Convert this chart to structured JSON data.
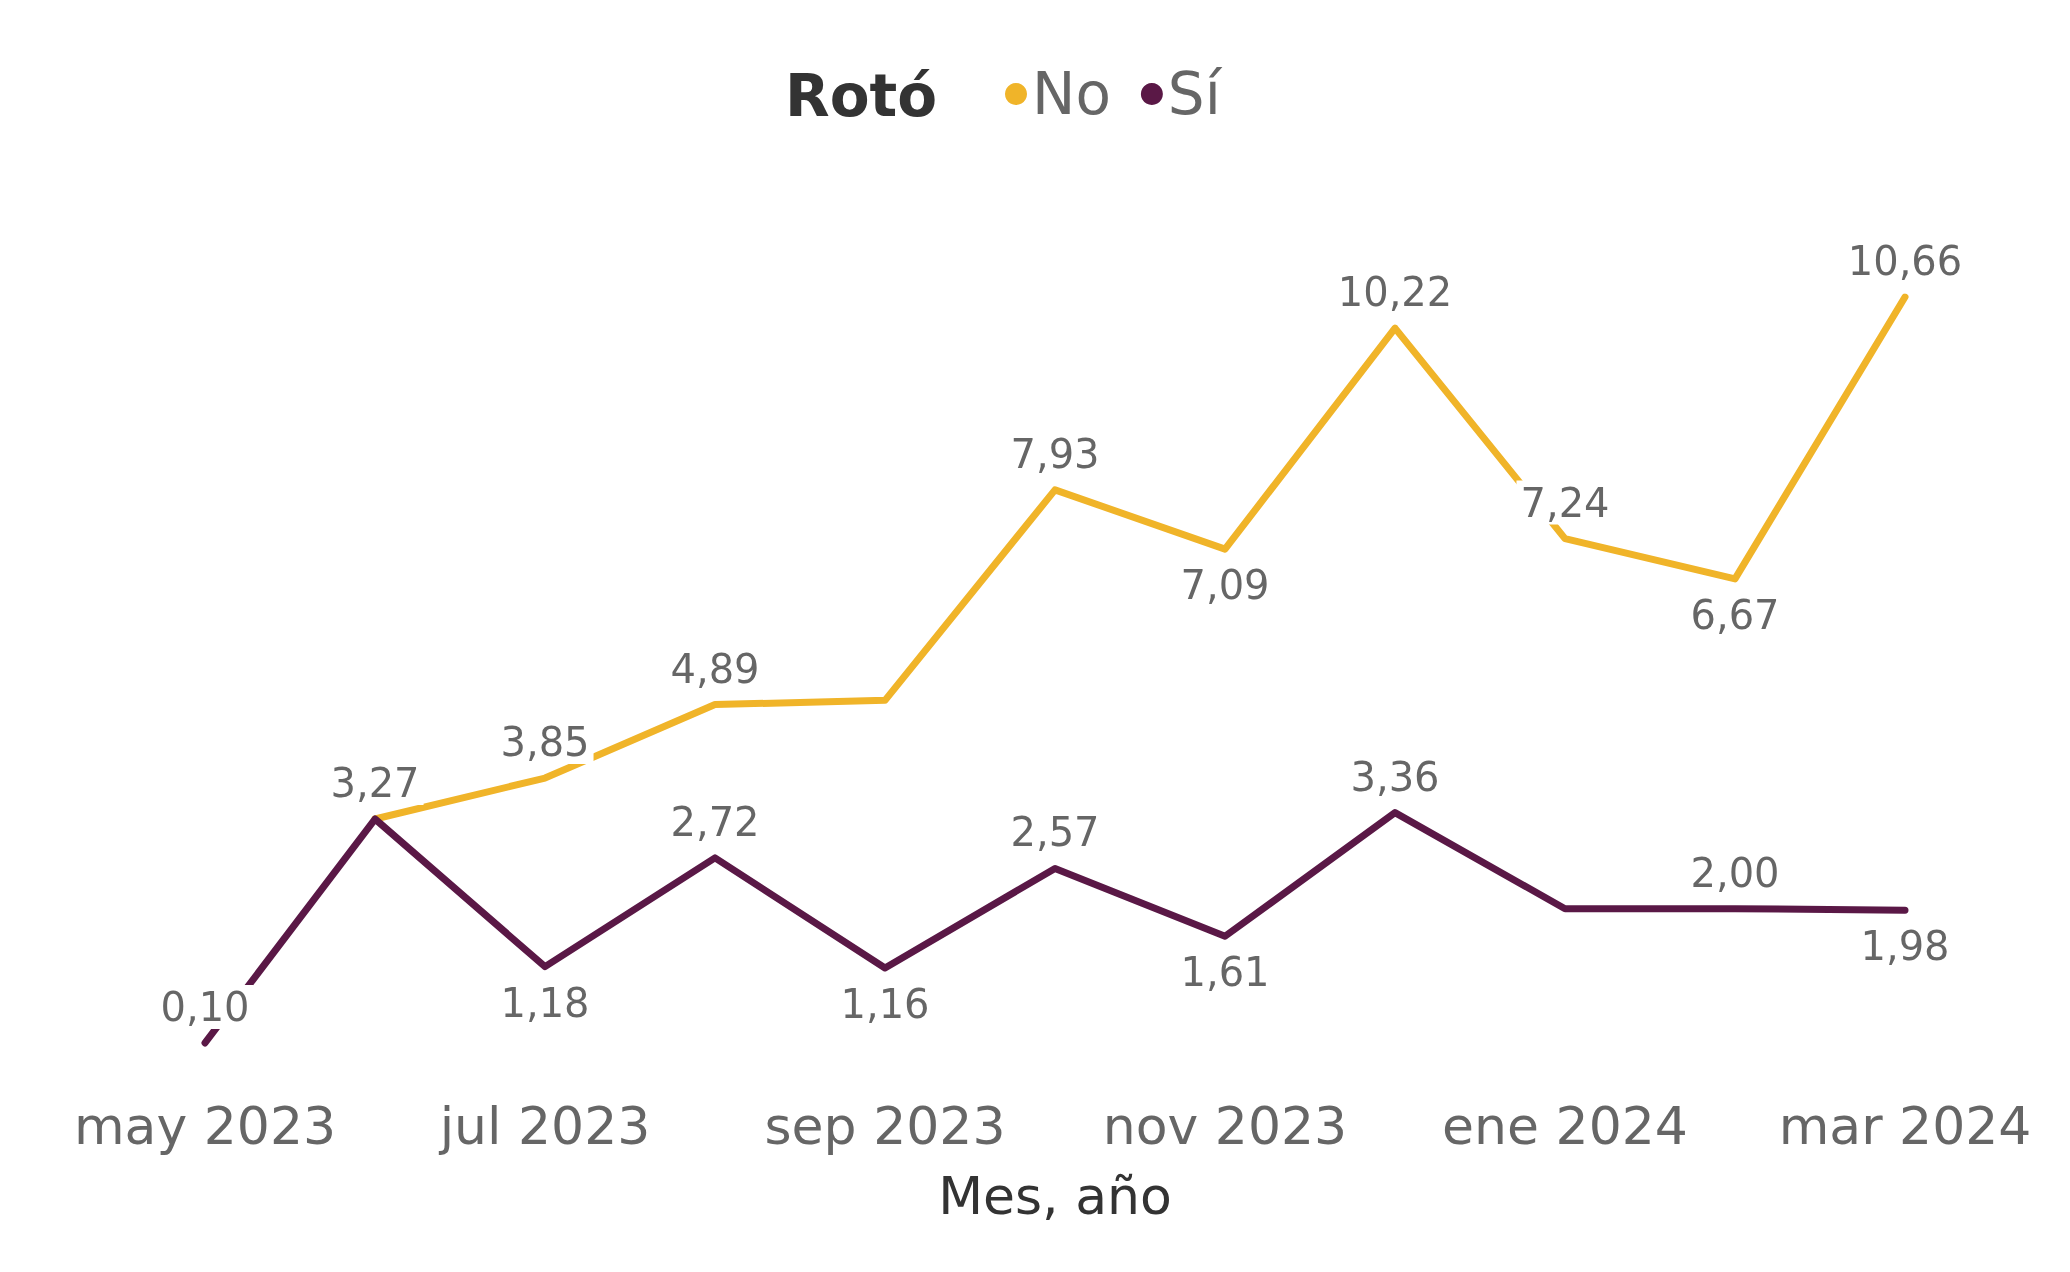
{
  "chart_data": {
    "type": "line",
    "xlabel": "Mes, año",
    "legend_title": "Rotó",
    "legend": "top",
    "marker": "none",
    "grid": false,
    "categories": [
      "may 2023",
      null,
      "jul 2023",
      null,
      "sep 2023",
      null,
      "nov 2023",
      null,
      "ene 2024",
      null,
      "mar 2024"
    ],
    "series": [
      {
        "name": "No",
        "color": "#f0b429",
        "values": [
          null,
          3.27,
          3.85,
          4.89,
          4.95,
          7.93,
          7.09,
          10.22,
          7.24,
          6.67,
          10.66
        ],
        "value_labels": [
          null,
          "3,27",
          "3,85",
          "4,89",
          null,
          "7,93",
          "7,09",
          "10,22",
          "7,24",
          "6,67",
          "10,66"
        ]
      },
      {
        "name": "Sí",
        "color": "#5a1846",
        "values": [
          0.1,
          3.27,
          1.18,
          2.72,
          1.16,
          2.57,
          1.61,
          3.36,
          2.0,
          2.0,
          1.98
        ],
        "value_labels": [
          "0,10",
          null,
          "1,18",
          "2,72",
          "1,16",
          "2,57",
          "1,61",
          "3,36",
          null,
          "2,00",
          "1,98"
        ]
      }
    ]
  }
}
